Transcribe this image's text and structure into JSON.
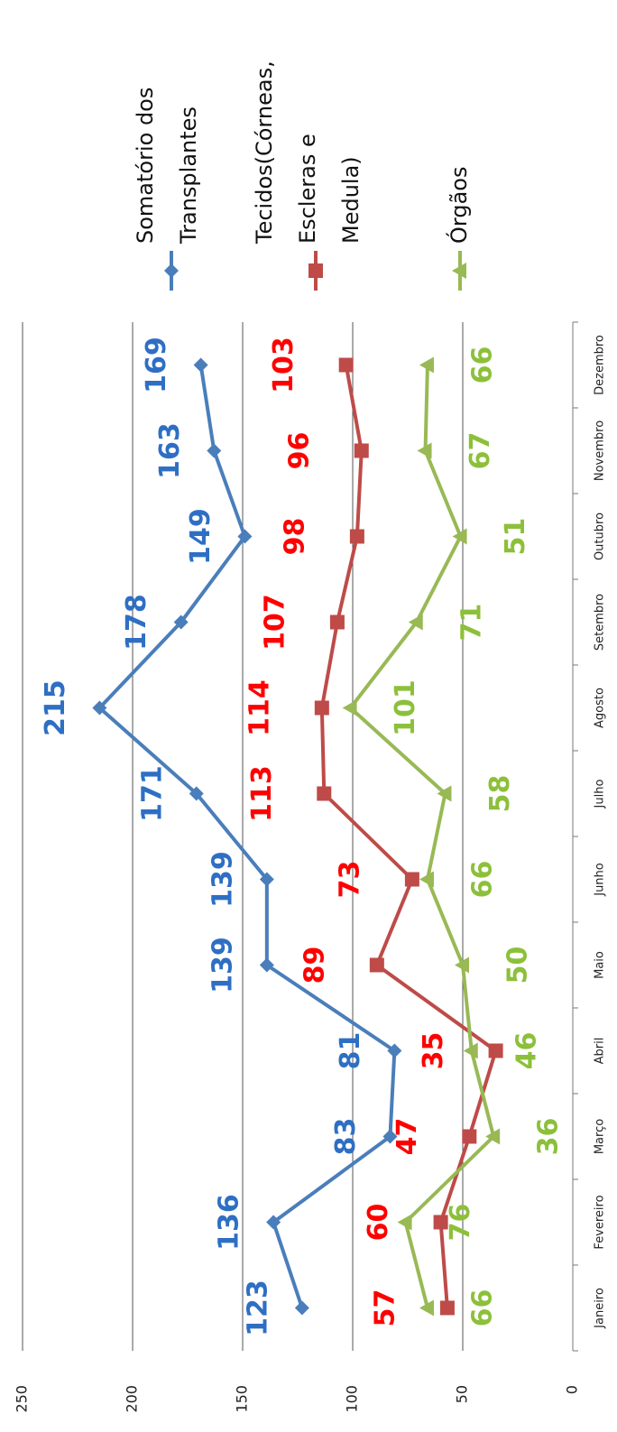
{
  "chart_data": {
    "type": "line",
    "categories": [
      "Janeiro",
      "Fevereiro",
      "Março",
      "Abril",
      "Maio",
      "Junho",
      "Julho",
      "Agosto",
      "Setembro",
      "Outubro",
      "Novembro",
      "Dezembro"
    ],
    "series": [
      {
        "name": "Somatório dos Transplantes",
        "color": "#4a7ebb",
        "label_color": "#2e6fc4",
        "marker": "diamond",
        "values": [
          123,
          136,
          83,
          81,
          139,
          139,
          171,
          215,
          178,
          149,
          163,
          169
        ]
      },
      {
        "name": "Tecidos(Córneas, Escleras e Medula)",
        "color": "#be4b48",
        "label_color": "#ff0000",
        "marker": "square",
        "values": [
          57,
          60,
          47,
          35,
          89,
          73,
          113,
          114,
          107,
          98,
          96,
          103
        ]
      },
      {
        "name": "Órgãos",
        "color": "#98b954",
        "label_color": "#8cc03a",
        "marker": "triangle",
        "values": [
          66,
          76,
          36,
          46,
          50,
          66,
          58,
          101,
          71,
          51,
          67,
          66
        ]
      }
    ],
    "ylim": [
      0,
      250
    ],
    "yticks": [
      0,
      50,
      100,
      150,
      200,
      250
    ],
    "grid": true,
    "legend": "right"
  }
}
